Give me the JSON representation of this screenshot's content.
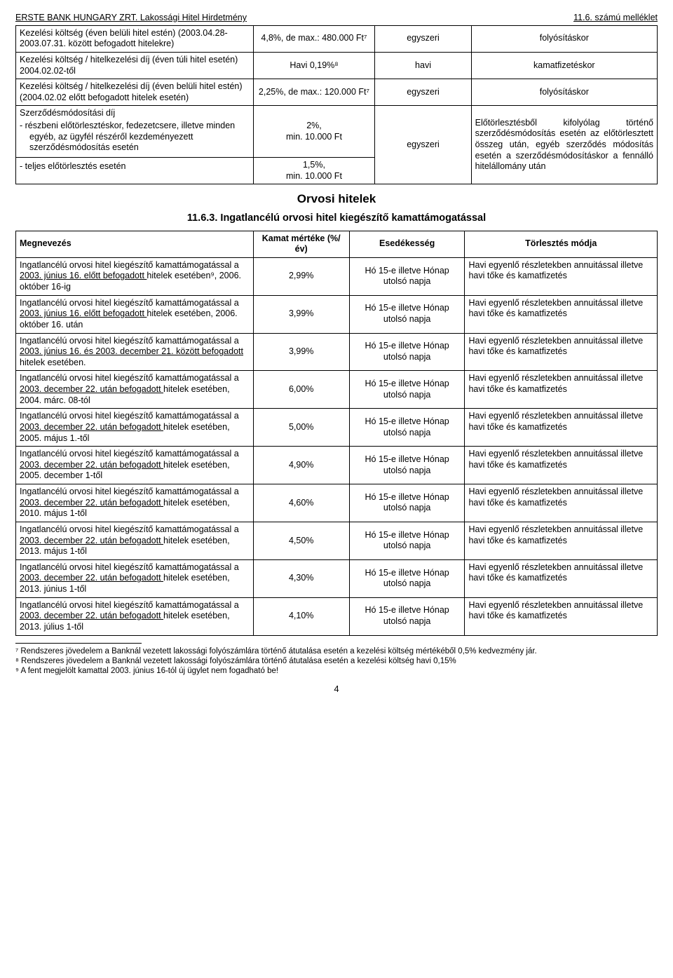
{
  "header": {
    "left": "ERSTE BANK HUNGARY ZRT. Lakossági Hitel Hirdetmény",
    "right": "11.6. számú melléklet"
  },
  "table1": {
    "col_widths": [
      "37%",
      "19%",
      "15%",
      "29%"
    ],
    "rows": [
      {
        "c0": "Kezelési költség (éven belüli hitel estén) (2003.04.28-2003.07.31. között befogadott hitelekre)",
        "c1": "4,8%, de max.: 480.000 Ft⁷",
        "c2": "egyszeri",
        "c3": "folyósításkor"
      },
      {
        "c0": "Kezelési költség / hitelkezelési díj (éven túli hitel esetén) 2004.02.02-től",
        "c1": "Havi 0,19%⁸",
        "c2": "havi",
        "c3": "kamatfizetéskor"
      },
      {
        "c0": "Kezelési költség / hitelkezelési díj (éven belüli hitel estén) (2004.02.02 előtt befogadott hitelek esetén)",
        "c1": "2,25%, de max.: 120.000 Ft⁷",
        "c2": "egyszeri",
        "c3": "folyósításkor"
      }
    ],
    "mod_row": {
      "label_top": "Szerződésmódosítási díj",
      "bullet1": "részbeni előtörlesztéskor, fedezetcsere, illetve minden egyéb, az ügyfél részéről kezdeményezett szerződésmódosítás esetén",
      "bullet2": "teljes előtörlesztés esetén",
      "val1": "2%,\nmin. 10.000 Ft",
      "val2": "1,5%,\nmin. 10.000 Ft",
      "c2": "egyszeri",
      "c3": "Előtörlesztésből kifolyólag történő szerződésmódosítás esetén az előtörlesztett összeg után, egyéb szerződés módosítás esetén a szerződésmódosításkor a fennálló hitelállomány után"
    }
  },
  "section_title": "Orvosi hitelek",
  "sub_title": "11.6.3. Ingatlancélú orvosi hitel kiegészítő kamattámogatással",
  "table2": {
    "col_widths": [
      "37%",
      "15%",
      "18%",
      "30%"
    ],
    "headers": [
      "Megnevezés",
      "Kamat mértéke (%/év)",
      "Esedékesség",
      "Törlesztés módja"
    ],
    "common": {
      "due": "Hó 15-e illetve Hónap utolsó napja",
      "repay": "Havi egyenlő részletekben annuitással illetve havi tőke és kamatfizetés"
    },
    "rows": [
      {
        "name_pre": "Ingatlancélú orvosi hitel kiegészítő kamattámogatással a ",
        "name_u": "2003. június 16. előtt befogadott ",
        "name_post": "hitelek esetében⁹, 2006. október 16-ig",
        "rate": "2,99%"
      },
      {
        "name_pre": "Ingatlancélú orvosi hitel kiegészítő kamattámogatással a ",
        "name_u": "2003. június 16. előtt befogadott ",
        "name_post": "hitelek esetében, 2006. október 16. után",
        "rate": "3,99%"
      },
      {
        "name_pre": "Ingatlancélú orvosi hitel kiegészítő kamattámogatással a ",
        "name_u": "2003. június 16. és 2003. december 21. között befogadott ",
        "name_post": "hitelek esetében.",
        "rate": "3,99%"
      },
      {
        "name_pre": "Ingatlancélú orvosi hitel kiegészítő kamattámogatással a ",
        "name_u": "2003. december 22. után befogadott ",
        "name_post": "hitelek esetében, 2004. márc. 08-tól",
        "rate": "6,00%"
      },
      {
        "name_pre": "Ingatlancélú orvosi hitel kiegészítő kamattámogatással a ",
        "name_u": "2003. december 22. után befogadott ",
        "name_post": "hitelek esetében, 2005. május 1.-től",
        "rate": "5,00%"
      },
      {
        "name_pre": "Ingatlancélú orvosi hitel kiegészítő kamattámogatással a ",
        "name_u": "2003. december 22. után befogadott ",
        "name_post": "hitelek esetében, 2005. december 1-től",
        "rate": "4,90%"
      },
      {
        "name_pre": "Ingatlancélú orvosi hitel kiegészítő kamattámogatással a ",
        "name_u": "2003. december 22. után befogadott ",
        "name_post": "hitelek esetében, 2010. május 1-től",
        "rate": "4,60%"
      },
      {
        "name_pre": "Ingatlancélú orvosi hitel kiegészítő kamattámogatással a ",
        "name_u": "2003. december 22. után befogadott ",
        "name_post": "hitelek esetében, 2013. május 1-től",
        "rate": "4,50%"
      },
      {
        "name_pre": "Ingatlancélú orvosi hitel kiegészítő kamattámogatással a ",
        "name_u": "2003. december 22. után befogadott ",
        "name_post": "hitelek esetében, 2013. június 1-től",
        "rate": "4,30%"
      },
      {
        "name_pre": "Ingatlancélú orvosi hitel kiegészítő kamattámogatással a ",
        "name_u": "2003. december 22. után befogadott ",
        "name_post": "hitelek esetében, 2013. július 1-től",
        "rate": "4,10%"
      }
    ]
  },
  "footnotes": {
    "f7": "⁷ Rendszeres jövedelem a Banknál vezetett lakossági folyószámlára történő átutalása esetén a kezelési költség mértékéből 0,5% kedvezmény jár.",
    "f8": "⁸ Rendszeres jövedelem a Banknál vezetett lakossági folyószámlára történő átutalása esetén a kezelési költség havi 0,15%",
    "f9": "⁹ A fent megjelölt kamattal 2003. június 16-tól új ügylet nem fogadható be!"
  },
  "page_number": "4"
}
